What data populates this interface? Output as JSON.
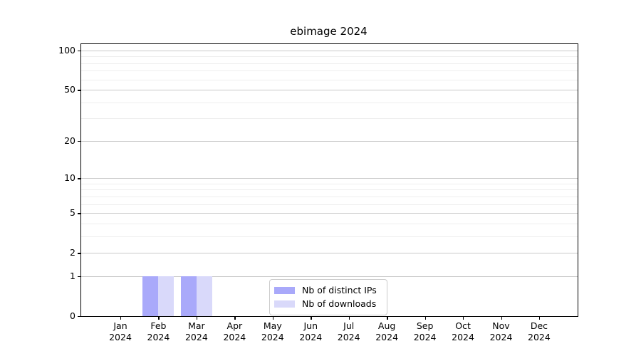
{
  "chart_data": {
    "type": "bar",
    "title": "ebimage 2024",
    "categories": [
      "Jan",
      "Feb",
      "Mar",
      "Apr",
      "May",
      "Jun",
      "Jul",
      "Aug",
      "Sep",
      "Oct",
      "Nov",
      "Dec"
    ],
    "category_year": "2024",
    "series": [
      {
        "name": "Nb of distinct IPs",
        "color": "#a9a9fa",
        "values": [
          0,
          1,
          1,
          0,
          0,
          0,
          0,
          0,
          0,
          0,
          0,
          0
        ]
      },
      {
        "name": "Nb of downloads",
        "color": "#d9d9fa",
        "values": [
          0,
          1,
          1,
          0,
          0,
          0,
          0,
          0,
          0,
          0,
          0,
          0
        ]
      }
    ],
    "xlabel": "",
    "ylabel": "",
    "yscale": "log1p",
    "ylim": [
      0,
      112
    ],
    "y_ticks_major": [
      0,
      1,
      2,
      5,
      10,
      20,
      50,
      100
    ],
    "y_ticks_minor": [
      3,
      4,
      6,
      7,
      8,
      9,
      30,
      40,
      60,
      70,
      80,
      90
    ],
    "grid": "horizontal-both",
    "legend_position": "lower-center-inside",
    "colors": {
      "grid_major": "#c8c8c8",
      "grid_minor": "#eeeeee",
      "axis": "#000000",
      "text": "#000000",
      "background": "#ffffff"
    }
  }
}
